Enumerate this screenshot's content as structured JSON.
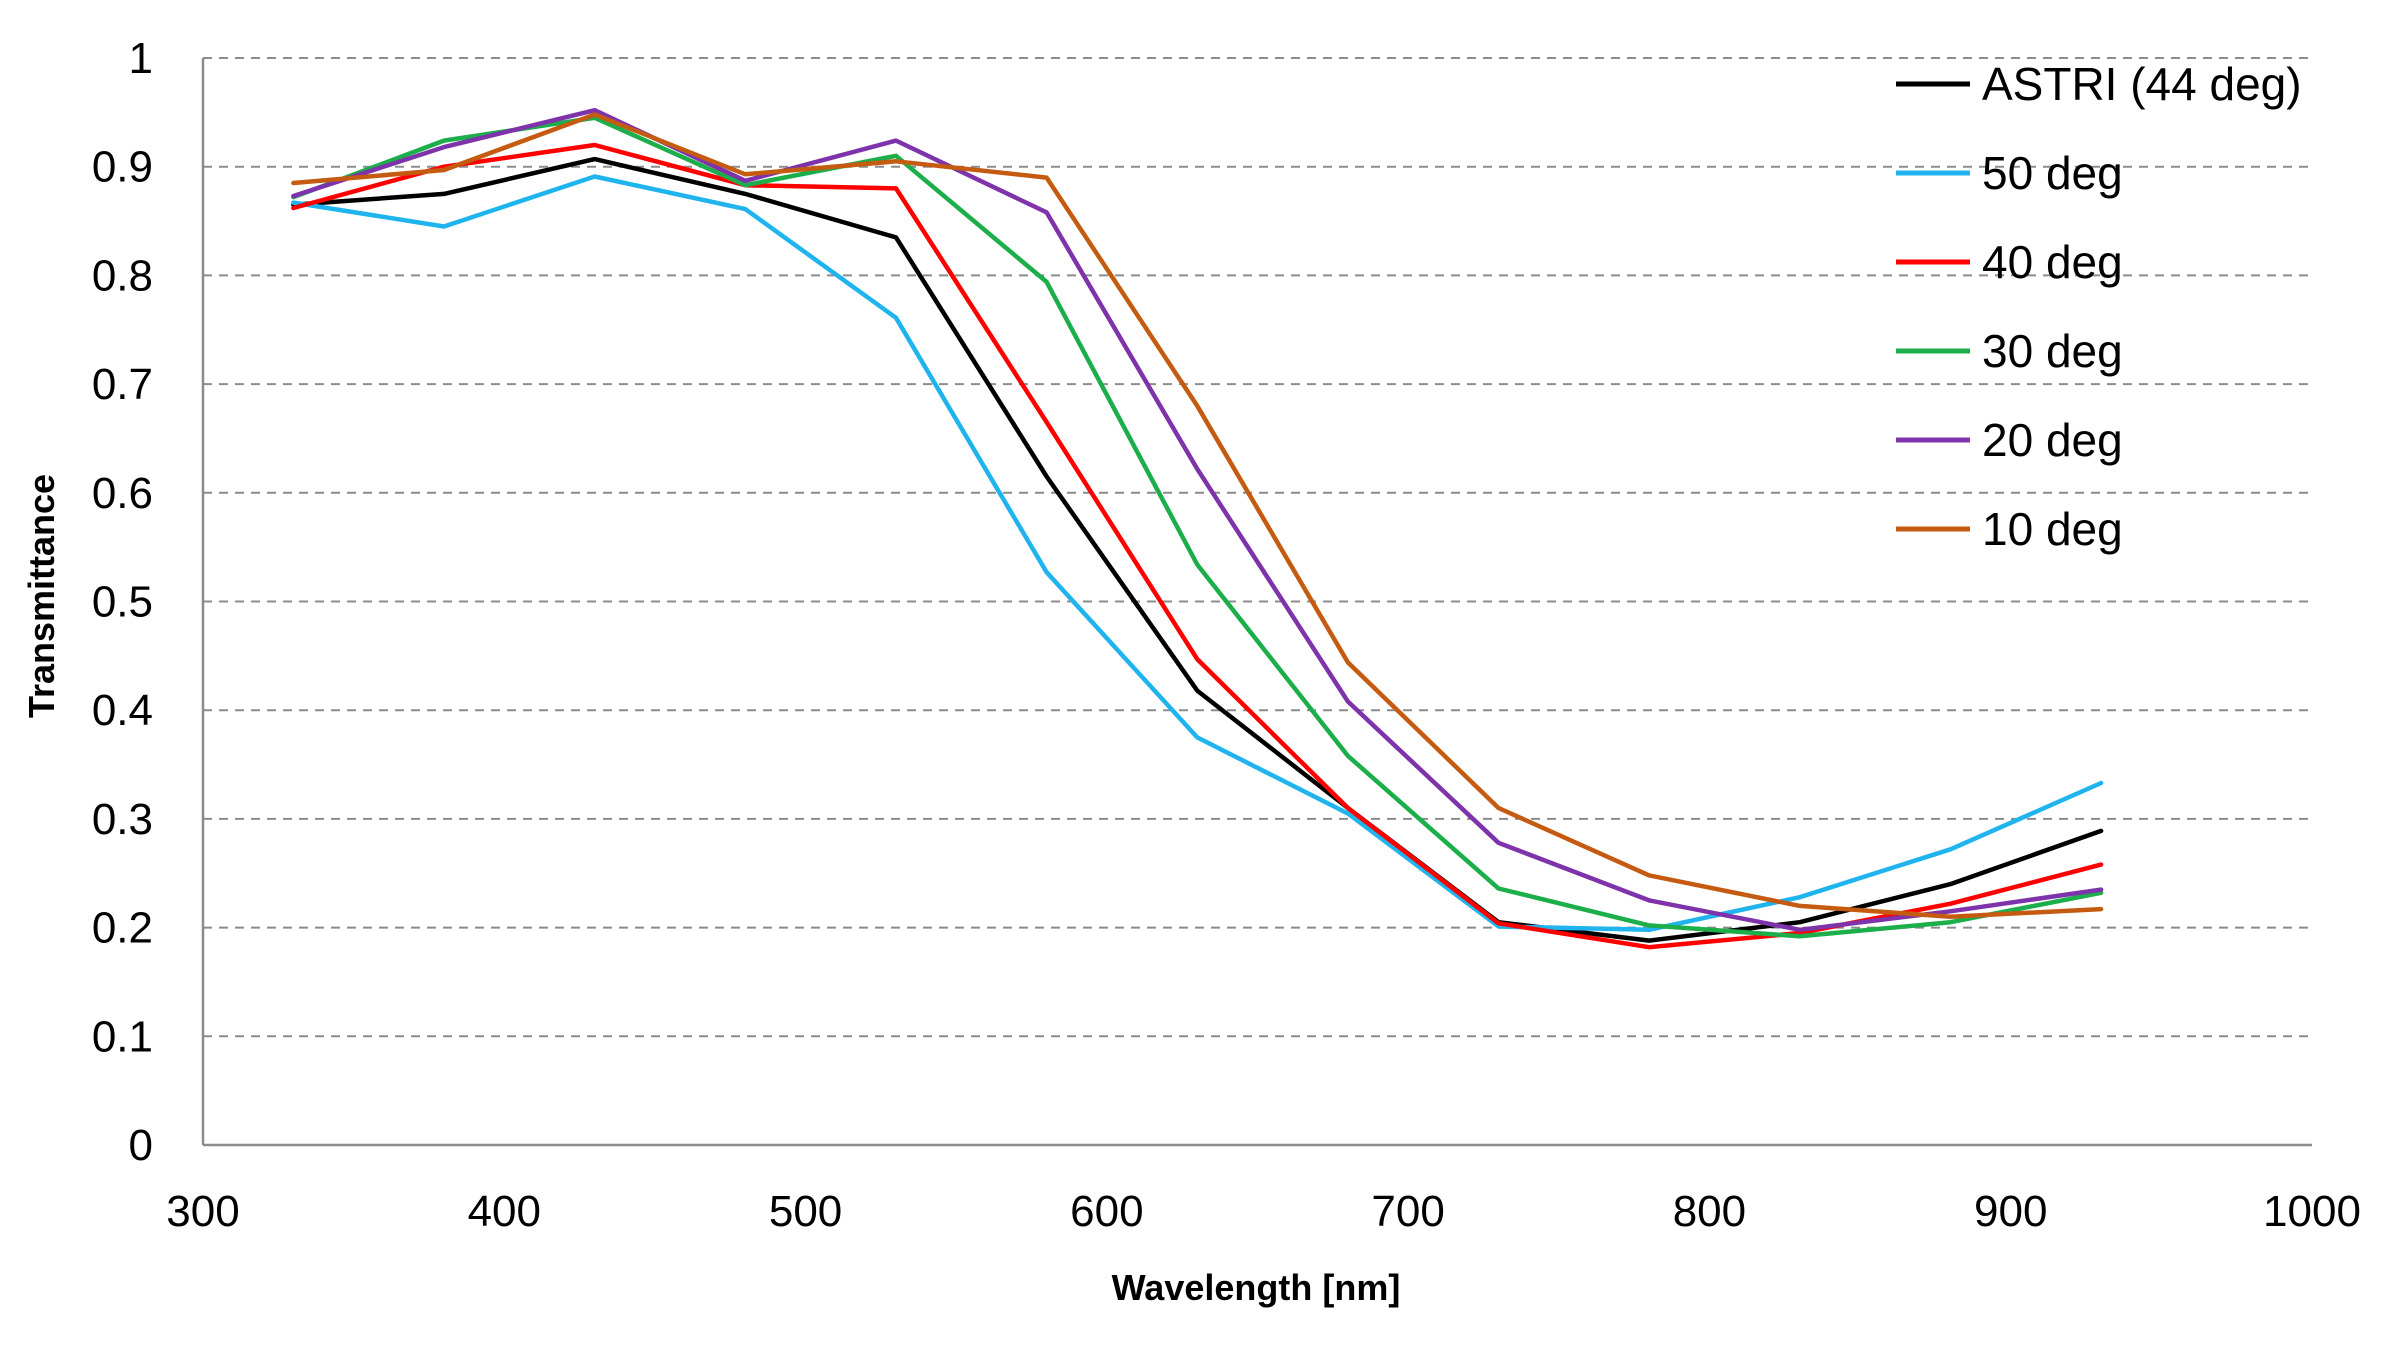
{
  "chart_data": {
    "type": "line",
    "title": "",
    "xlabel": "Wavelength [nm]",
    "ylabel": "Transmittance",
    "xlim": [
      300,
      1000
    ],
    "ylim": [
      0,
      1
    ],
    "xticks": [
      300,
      400,
      500,
      600,
      700,
      800,
      900,
      1000
    ],
    "yticks": [
      0,
      0.1,
      0.2,
      0.3,
      0.4,
      0.5,
      0.6,
      0.7,
      0.8,
      0.9,
      1
    ],
    "xtick_labels": [
      "300",
      "400",
      "500",
      "600",
      "700",
      "800",
      "900",
      "1000"
    ],
    "ytick_labels": [
      "0",
      "0.1",
      "0.2",
      "0.3",
      "0.4",
      "0.5",
      "0.6",
      "0.7",
      "0.8",
      "0.9",
      "1"
    ],
    "grid": "horizontal dashed",
    "legend_position": "top-right",
    "x": [
      330,
      380,
      430,
      480,
      530,
      580,
      630,
      680,
      730,
      780,
      830,
      880,
      930
    ],
    "series": [
      {
        "name": "ASTRI (44 deg)",
        "color": "#000000",
        "values": [
          0.865,
          0.875,
          0.907,
          0.875,
          0.835,
          0.615,
          0.418,
          0.31,
          0.205,
          0.188,
          0.205,
          0.24,
          0.289
        ]
      },
      {
        "name": "50 deg",
        "color": "#1fb4ee",
        "values": [
          0.867,
          0.845,
          0.891,
          0.861,
          0.761,
          0.527,
          0.375,
          0.305,
          0.201,
          0.198,
          0.228,
          0.272,
          0.333
        ]
      },
      {
        "name": "40 deg",
        "color": "#ff0000",
        "values": [
          0.862,
          0.9,
          0.92,
          0.883,
          0.88,
          0.665,
          0.447,
          0.31,
          0.204,
          0.182,
          0.195,
          0.222,
          0.258
        ]
      },
      {
        "name": "30 deg",
        "color": "#1cae4a",
        "values": [
          0.872,
          0.924,
          0.945,
          0.883,
          0.91,
          0.794,
          0.534,
          0.358,
          0.236,
          0.202,
          0.192,
          0.205,
          0.232
        ]
      },
      {
        "name": "20 deg",
        "color": "#7e33ab",
        "values": [
          0.873,
          0.918,
          0.952,
          0.887,
          0.924,
          0.858,
          0.622,
          0.408,
          0.278,
          0.225,
          0.198,
          0.215,
          0.235
        ]
      },
      {
        "name": "10 deg",
        "color": "#c55a11",
        "values": [
          0.885,
          0.897,
          0.948,
          0.893,
          0.905,
          0.89,
          0.68,
          0.444,
          0.31,
          0.248,
          0.22,
          0.21,
          0.217
        ]
      }
    ]
  }
}
